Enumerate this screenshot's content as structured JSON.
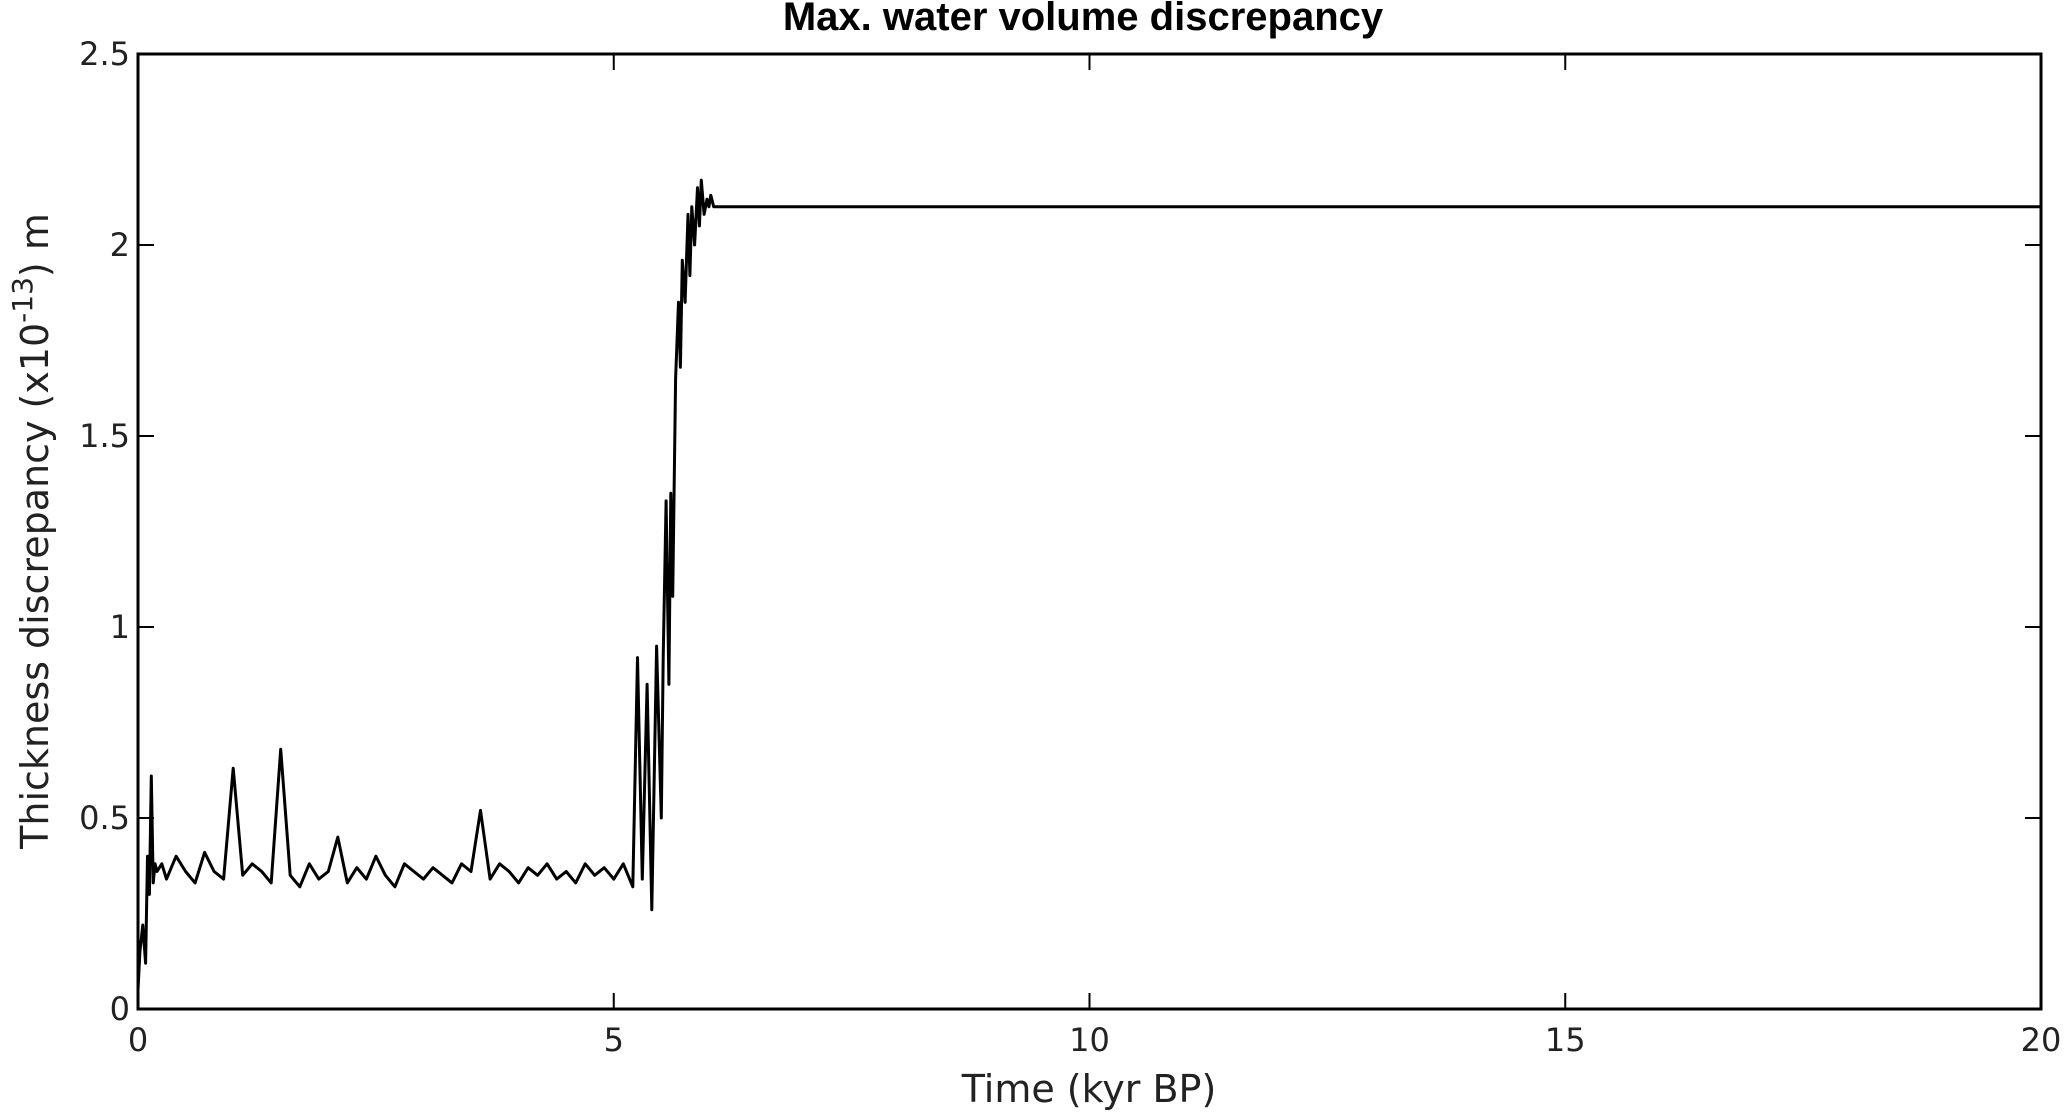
{
  "chart_data": {
    "type": "line",
    "title": "Max. water volume discrepancy",
    "xlabel": "Time (kyr BP)",
    "ylabel": {
      "prefix": "Thickness discrepancy (x10",
      "exponent": "-13",
      "suffix": ") m"
    },
    "xlim": [
      0,
      20
    ],
    "ylim": [
      0,
      2.5
    ],
    "xticks": [
      0,
      5,
      10,
      15,
      20
    ],
    "xtick_labels": [
      "0",
      "5",
      "10",
      "15",
      "20"
    ],
    "yticks": [
      0,
      0.5,
      1,
      1.5,
      2,
      2.5
    ],
    "ytick_labels": [
      "0",
      "0.5",
      "1",
      "1.5",
      "2",
      "2.5"
    ],
    "grid": false,
    "line_color": "#000000",
    "series": [
      {
        "x": [
          0.0,
          0.02,
          0.05,
          0.08,
          0.1,
          0.12,
          0.14,
          0.16,
          0.18,
          0.2,
          0.25,
          0.3,
          0.4,
          0.5,
          0.6,
          0.7,
          0.8,
          0.9,
          1.0,
          1.1,
          1.2,
          1.3,
          1.4,
          1.5,
          1.6,
          1.7,
          1.8,
          1.9,
          2.0,
          2.1,
          2.2,
          2.3,
          2.4,
          2.5,
          2.6,
          2.7,
          2.8,
          2.9,
          3.0,
          3.1,
          3.2,
          3.3,
          3.4,
          3.5,
          3.6,
          3.7,
          3.8,
          3.9,
          4.0,
          4.1,
          4.2,
          4.3,
          4.4,
          4.5,
          4.6,
          4.7,
          4.8,
          4.9,
          5.0,
          5.1,
          5.2,
          5.25,
          5.3,
          5.35,
          5.4,
          5.45,
          5.5,
          5.52,
          5.55,
          5.58,
          5.6,
          5.62,
          5.65,
          5.68,
          5.7,
          5.72,
          5.75,
          5.78,
          5.8,
          5.82,
          5.85,
          5.88,
          5.9,
          5.92,
          5.95,
          5.98,
          6.0,
          6.02,
          6.05,
          7.0,
          10.0,
          15.0,
          20.0
        ],
        "y": [
          0.05,
          0.15,
          0.22,
          0.12,
          0.4,
          0.3,
          0.61,
          0.33,
          0.38,
          0.36,
          0.38,
          0.34,
          0.4,
          0.36,
          0.33,
          0.41,
          0.36,
          0.34,
          0.63,
          0.35,
          0.38,
          0.36,
          0.33,
          0.68,
          0.35,
          0.32,
          0.38,
          0.34,
          0.36,
          0.45,
          0.33,
          0.37,
          0.34,
          0.4,
          0.35,
          0.32,
          0.38,
          0.36,
          0.34,
          0.37,
          0.35,
          0.33,
          0.38,
          0.36,
          0.52,
          0.34,
          0.38,
          0.36,
          0.33,
          0.37,
          0.35,
          0.38,
          0.34,
          0.36,
          0.33,
          0.38,
          0.35,
          0.37,
          0.34,
          0.38,
          0.32,
          0.92,
          0.34,
          0.85,
          0.26,
          0.95,
          0.5,
          0.92,
          1.33,
          0.85,
          1.35,
          1.08,
          1.65,
          1.85,
          1.68,
          1.96,
          1.85,
          2.08,
          1.92,
          2.1,
          2.0,
          2.15,
          2.05,
          2.17,
          2.08,
          2.12,
          2.1,
          2.13,
          2.1,
          2.1,
          2.1,
          2.1,
          2.1
        ]
      }
    ]
  }
}
